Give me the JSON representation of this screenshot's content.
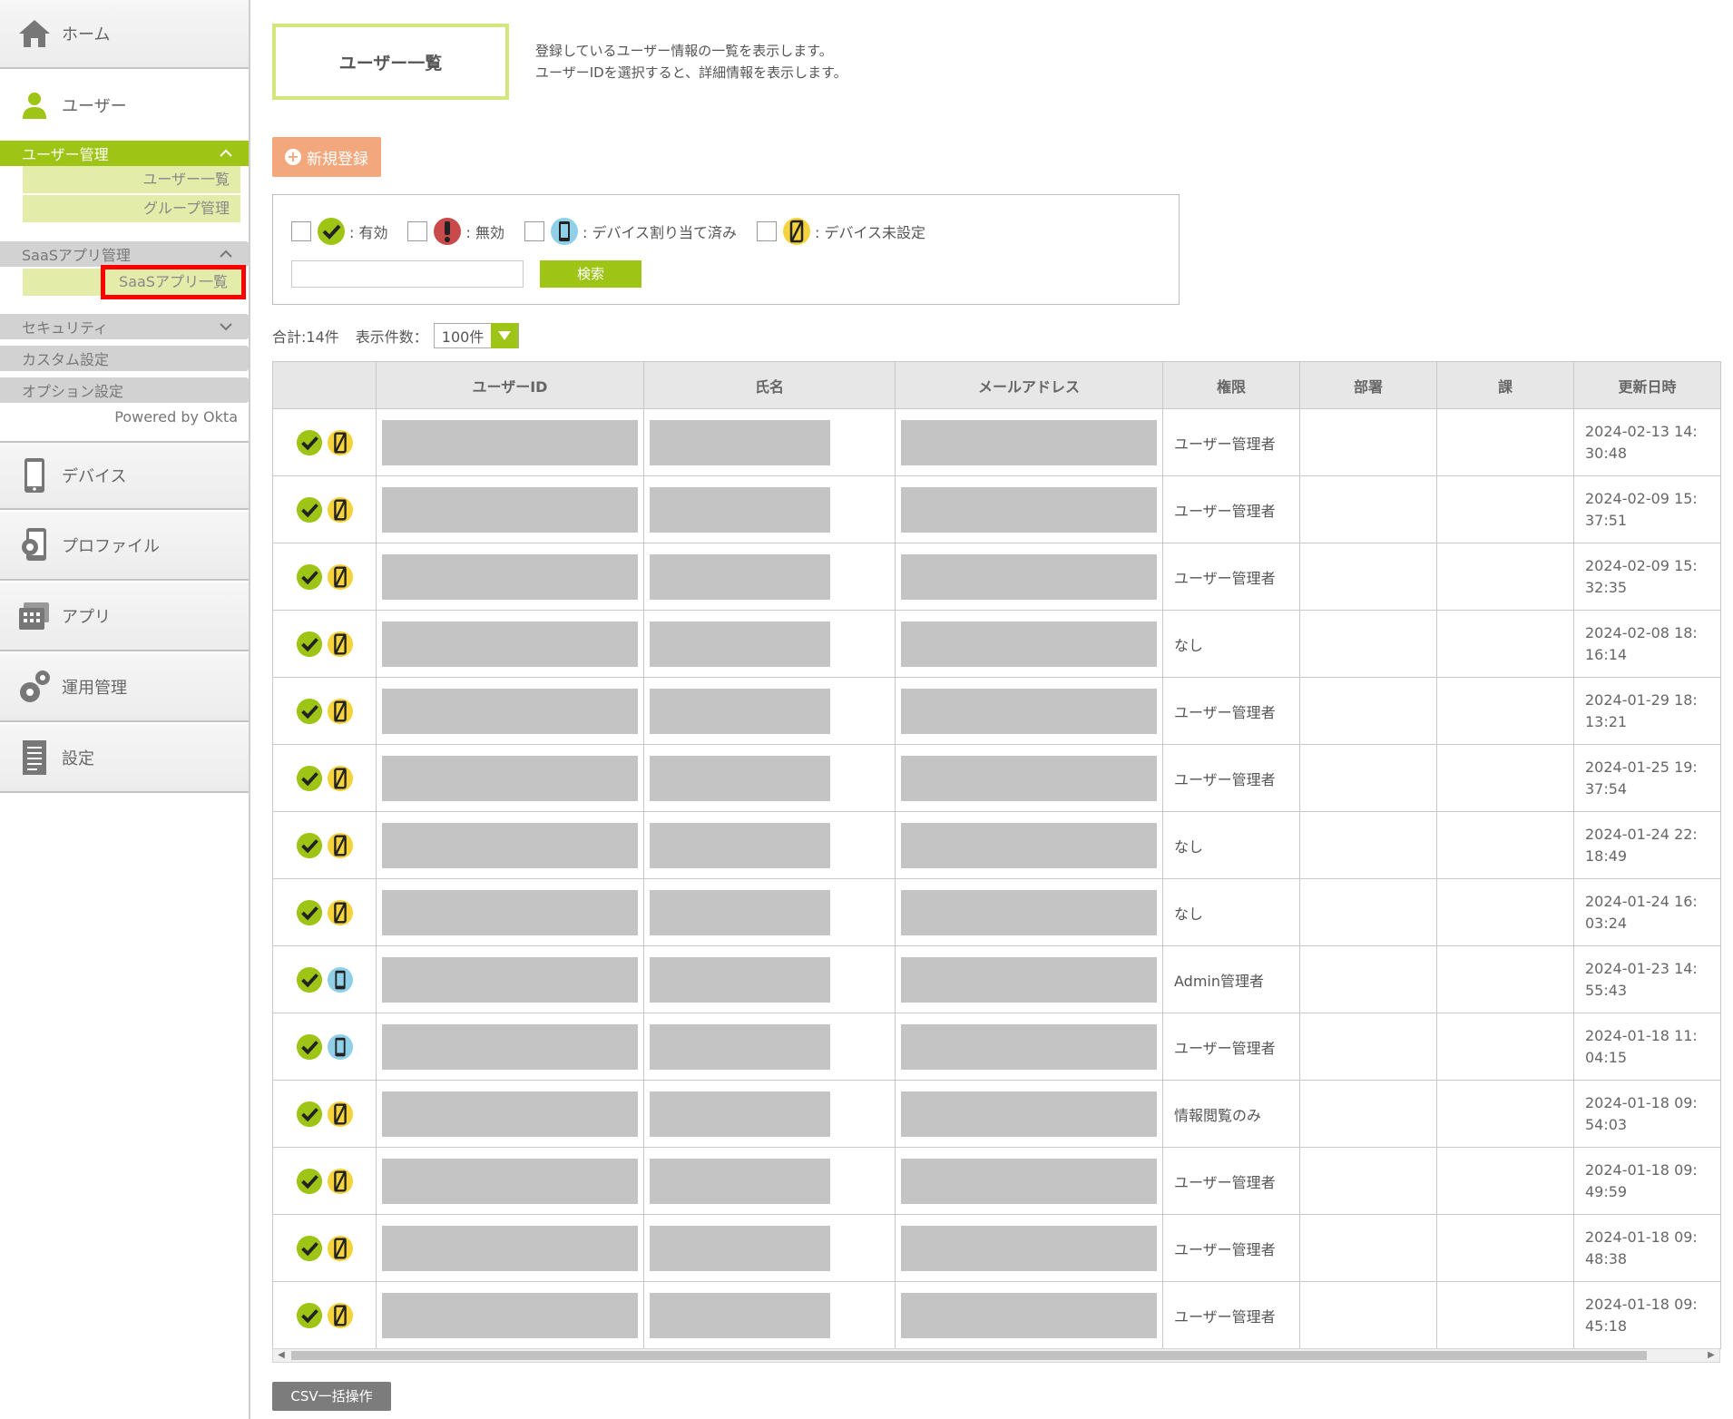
{
  "sidebar": {
    "home_label": "ホーム",
    "user_label": "ユーザー",
    "user_mgmt": {
      "label": "ユーザー管理",
      "items": [
        "ユーザー一覧",
        "グループ管理"
      ]
    },
    "saas_mgmt": {
      "label": "SaaSアプリ管理",
      "items": [
        "SaaSアプリ一覧"
      ]
    },
    "security_label": "セキュリティ",
    "custom_label": "カスタム設定",
    "option_label": "オプション設定",
    "powered_by": "Powered by Okta",
    "device_label": "デバイス",
    "profile_label": "プロファイル",
    "app_label": "アプリ",
    "ops_label": "運用管理",
    "settings_label": "設定"
  },
  "page": {
    "title": "ユーザー一覧",
    "desc_line1": "登録しているユーザー情報の一覧を表示します。",
    "desc_line2": "ユーザーIDを選択すると、詳細情報を表示します。",
    "new_button": "新規登録"
  },
  "filter": {
    "options": [
      ": 有効",
      ": 無効",
      ": デバイス割り当て済み",
      ": デバイス未設定"
    ],
    "search_value": "",
    "search_button": "検索"
  },
  "summary": {
    "total": "合計:14件",
    "per_page_label": "表示件数：",
    "per_page_value": "100件"
  },
  "table": {
    "headers": [
      "",
      "ユーザーID",
      "氏名",
      "メールアドレス",
      "権限",
      "部署",
      "課",
      "更新日時"
    ],
    "rows": [
      {
        "device": "none",
        "role": "ユーザー管理者",
        "date1": "2024-02-13 14:",
        "date2": "30:48"
      },
      {
        "device": "none",
        "role": "ユーザー管理者",
        "date1": "2024-02-09 15:",
        "date2": "37:51"
      },
      {
        "device": "none",
        "role": "ユーザー管理者",
        "date1": "2024-02-09 15:",
        "date2": "32:35"
      },
      {
        "device": "none",
        "role": "なし",
        "date1": "2024-02-08 18:",
        "date2": "16:14"
      },
      {
        "device": "none",
        "role": "ユーザー管理者",
        "date1": "2024-01-29 18:",
        "date2": "13:21"
      },
      {
        "device": "none",
        "role": "ユーザー管理者",
        "date1": "2024-01-25 19:",
        "date2": "37:54"
      },
      {
        "device": "none",
        "role": "なし",
        "date1": "2024-01-24 22:",
        "date2": "18:49"
      },
      {
        "device": "none",
        "role": "なし",
        "date1": "2024-01-24 16:",
        "date2": "03:24"
      },
      {
        "device": "assigned",
        "role": "Admin管理者",
        "date1": "2024-01-23 14:",
        "date2": "55:43"
      },
      {
        "device": "assigned",
        "role": "ユーザー管理者",
        "date1": "2024-01-18 11:",
        "date2": "04:15"
      },
      {
        "device": "none",
        "role": "情報閲覧のみ",
        "date1": "2024-01-18 09:",
        "date2": "54:03"
      },
      {
        "device": "none",
        "role": "ユーザー管理者",
        "date1": "2024-01-18 09:",
        "date2": "49:59"
      },
      {
        "device": "none",
        "role": "ユーザー管理者",
        "date1": "2024-01-18 09:",
        "date2": "48:38"
      },
      {
        "device": "none",
        "role": "ユーザー管理者",
        "date1": "2024-01-18 09:",
        "date2": "45:18"
      }
    ]
  },
  "csv_button": "CSV一括操作",
  "colors": {
    "accent": "#9ec415",
    "orange": "#f3a77c",
    "highlight": "#ff0000"
  }
}
